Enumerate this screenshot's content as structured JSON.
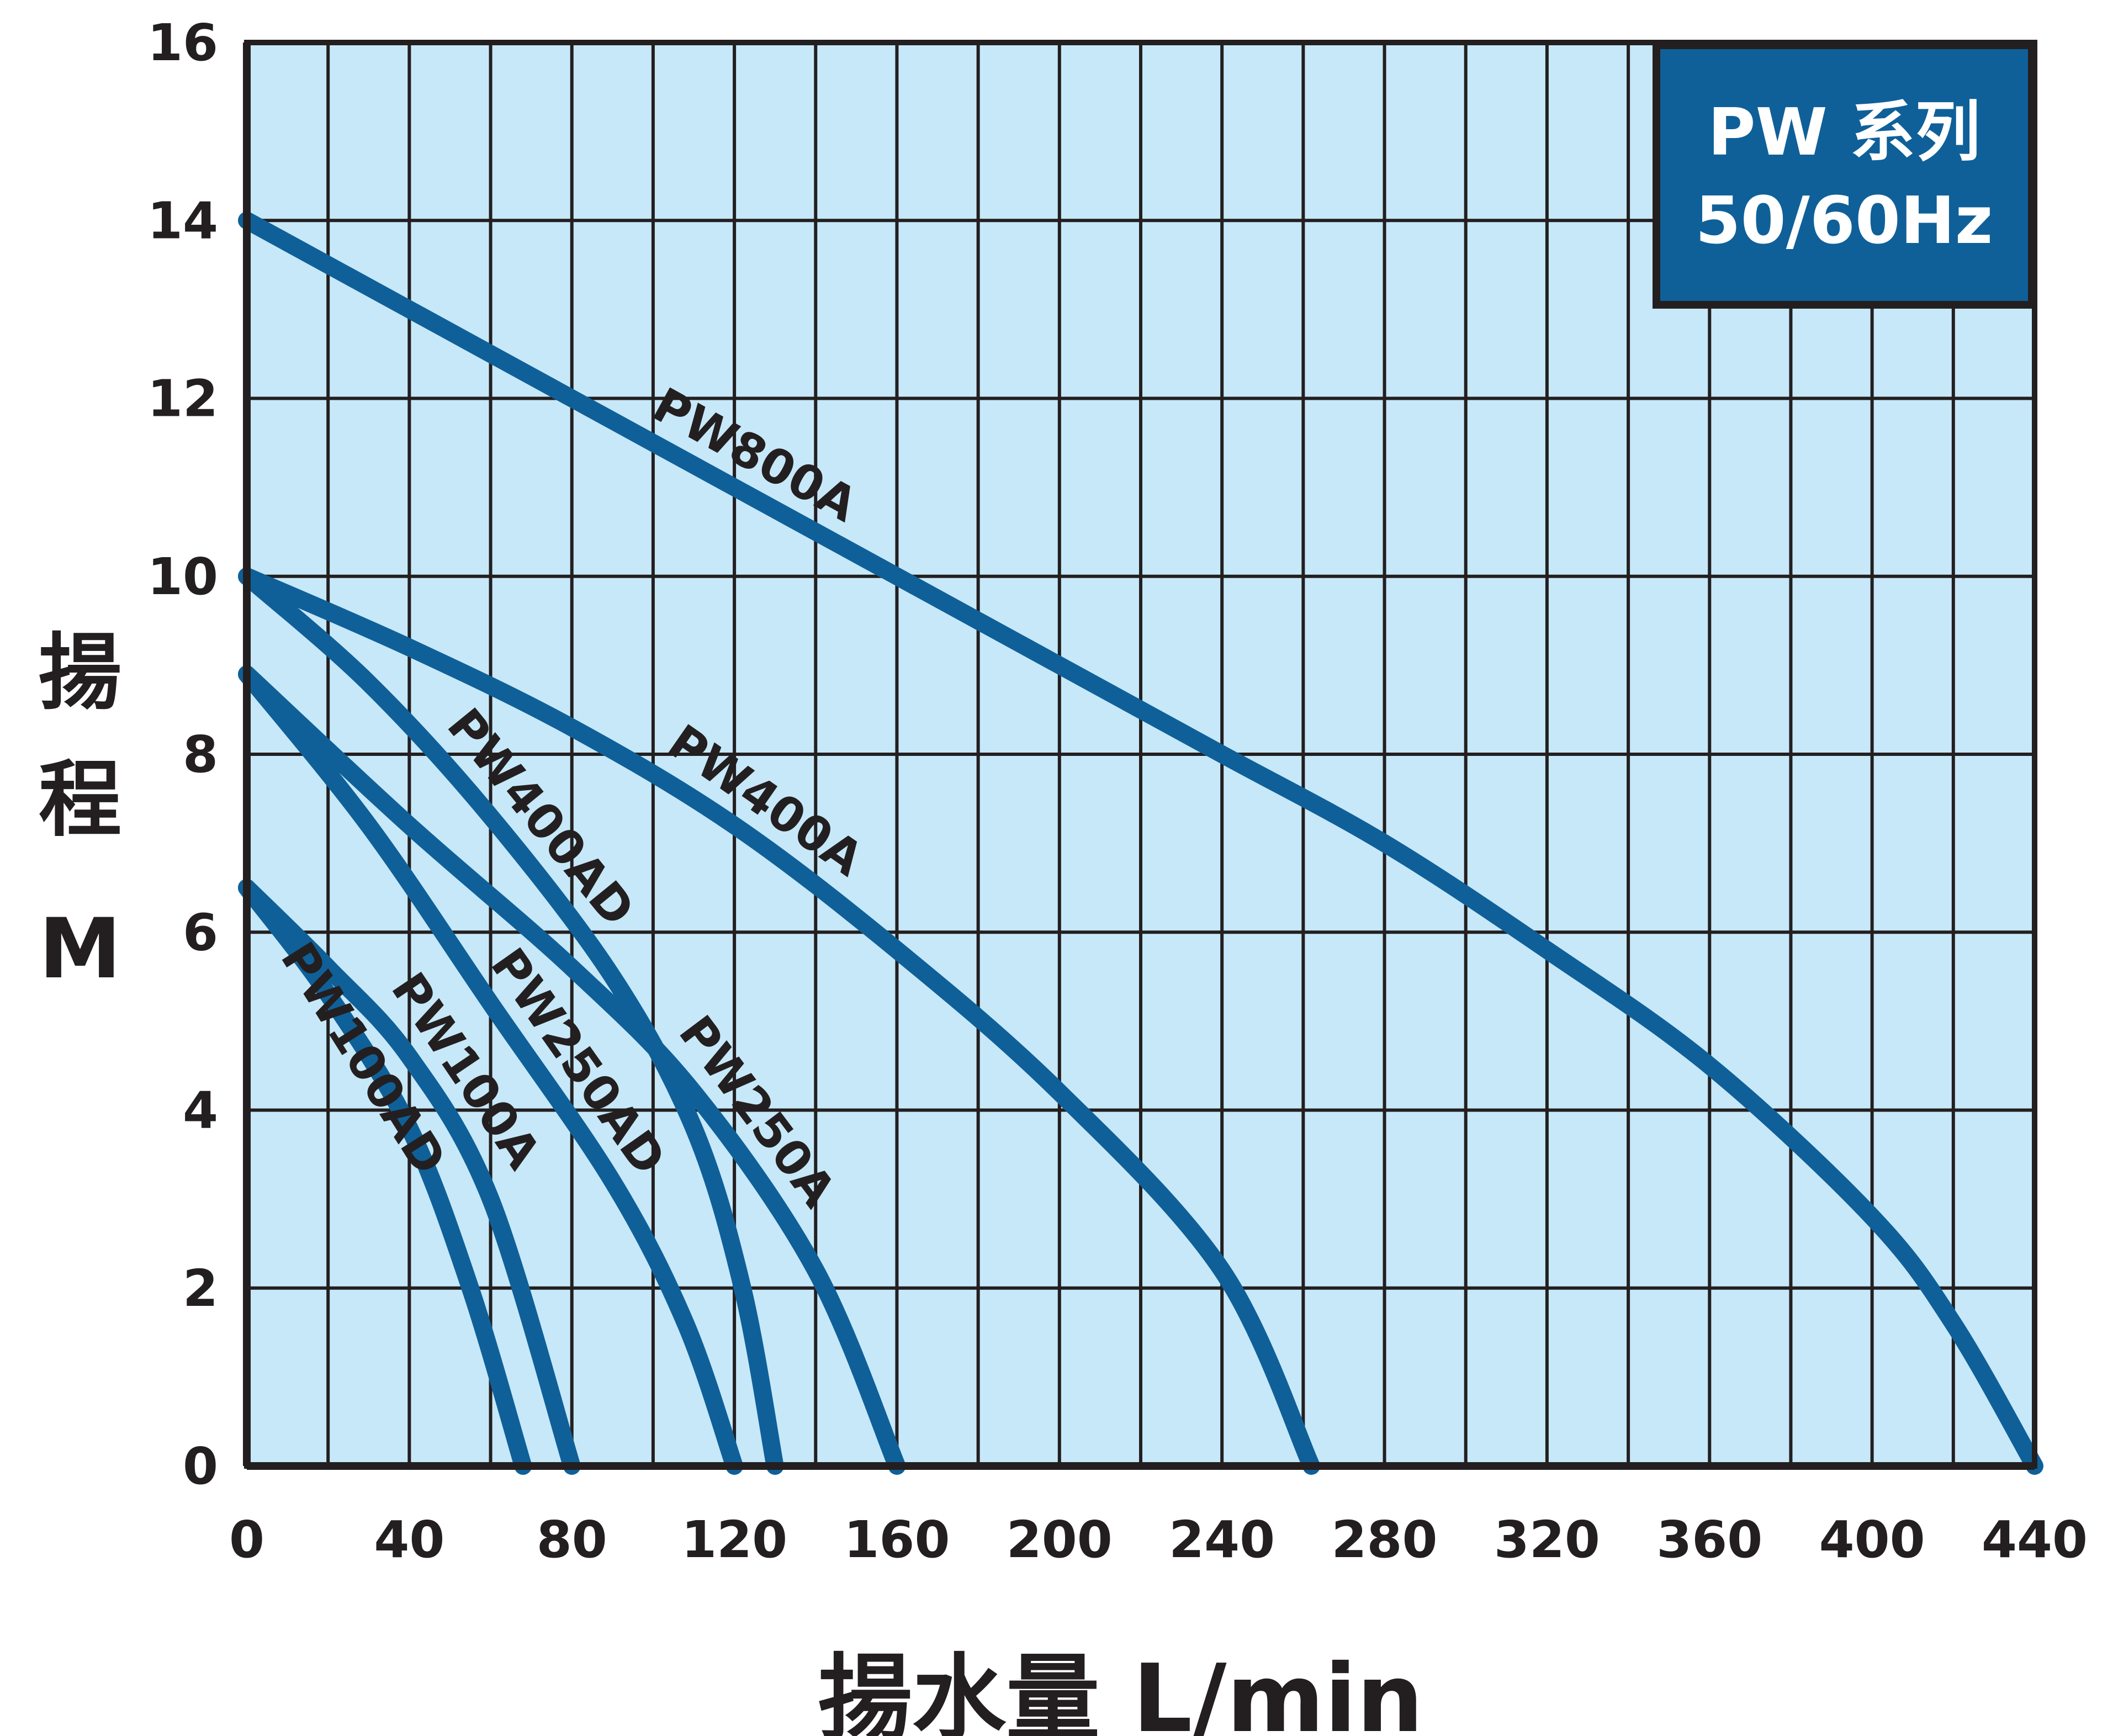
{
  "chart_data": {
    "type": "line",
    "title": "",
    "legend_box": {
      "line1": "PW 系列",
      "line2": "50/60Hz"
    },
    "xlabel": "揚水量 L/min",
    "ylabel": {
      "line1": "揚",
      "line2": "程",
      "line3": "M"
    },
    "xlim": [
      0,
      440
    ],
    "ylim": [
      0,
      16
    ],
    "x_ticks": [
      0,
      40,
      80,
      120,
      160,
      200,
      240,
      280,
      320,
      360,
      400,
      440
    ],
    "y_ticks": [
      0,
      2,
      4,
      6,
      8,
      10,
      12,
      14,
      16
    ],
    "grid": true,
    "colors": {
      "plot_bg": "#c7e8f8",
      "curve": "#0f6099",
      "legend_bg": "#0f6099",
      "grid": "#231f20"
    },
    "series": [
      {
        "name": "PW800A",
        "points": [
          [
            0,
            14
          ],
          [
            40,
            13
          ],
          [
            80,
            12
          ],
          [
            120,
            11
          ],
          [
            160,
            10
          ],
          [
            200,
            9
          ],
          [
            240,
            8
          ],
          [
            280,
            7
          ],
          [
            320,
            5.8
          ],
          [
            360,
            4.5
          ],
          [
            400,
            2.8
          ],
          [
            420,
            1.6
          ],
          [
            440,
            0
          ]
        ]
      },
      {
        "name": "PW400A",
        "points": [
          [
            0,
            10
          ],
          [
            40,
            9.2
          ],
          [
            80,
            8.3
          ],
          [
            120,
            7.2
          ],
          [
            160,
            5.8
          ],
          [
            200,
            4.2
          ],
          [
            240,
            2.2
          ],
          [
            262,
            0
          ]
        ]
      },
      {
        "name": "PW400AD",
        "points": [
          [
            0,
            10
          ],
          [
            30,
            8.8
          ],
          [
            60,
            7.3
          ],
          [
            90,
            5.5
          ],
          [
            110,
            3.8
          ],
          [
            122,
            2
          ],
          [
            130,
            0
          ]
        ]
      },
      {
        "name": "PW250A",
        "points": [
          [
            0,
            8.9
          ],
          [
            40,
            7.2
          ],
          [
            80,
            5.6
          ],
          [
            110,
            4.2
          ],
          [
            140,
            2.2
          ],
          [
            160,
            0
          ]
        ]
      },
      {
        "name": "PW250AD",
        "points": [
          [
            0,
            8.9
          ],
          [
            30,
            7.2
          ],
          [
            60,
            5.2
          ],
          [
            90,
            3.2
          ],
          [
            108,
            1.6
          ],
          [
            120,
            0
          ]
        ]
      },
      {
        "name": "PW100A",
        "points": [
          [
            0,
            6.5
          ],
          [
            20,
            5.6
          ],
          [
            40,
            4.6
          ],
          [
            60,
            3
          ],
          [
            80,
            0
          ]
        ]
      },
      {
        "name": "PW100AD",
        "points": [
          [
            0,
            6.5
          ],
          [
            20,
            5.3
          ],
          [
            40,
            3.8
          ],
          [
            55,
            2
          ],
          [
            68,
            0
          ]
        ]
      }
    ]
  }
}
